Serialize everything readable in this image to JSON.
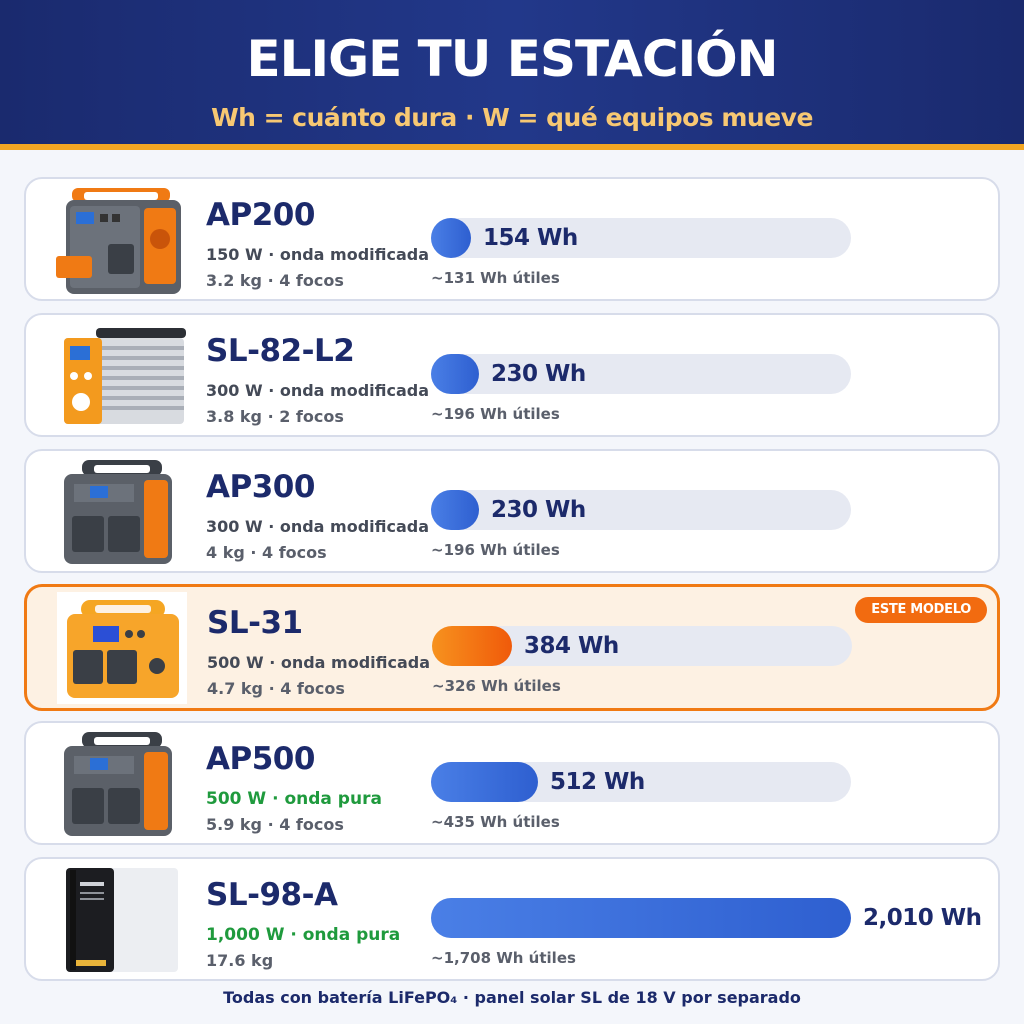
{
  "header": {
    "title": "ELIGE TU ESTACIÓN",
    "subtitle": "Wh = cuánto dura · W = qué equipos mueve"
  },
  "colors": {
    "header_bg": "#1f3380",
    "accent_gold": "#f3a623",
    "bar_blue": "#3b6fdc",
    "bar_orange": "#f37418",
    "highlight_bg": "#fdf1e3",
    "pure_green": "#1f9a3d"
  },
  "stations": [
    {
      "name": "AP200",
      "spec1": "150 W · onda modificada",
      "spec2": "3.2 kg · 4 focos",
      "capacity": "154 Wh",
      "capacity_value": 154,
      "useful": "~131 Wh útiles",
      "image_icon": "orange-gray-power-station-with-battery-icon"
    },
    {
      "name": "SL-82-L2",
      "spec1": "300 W · onda modificada",
      "spec2": "3.8 kg · 2 focos",
      "capacity": "230 Wh",
      "capacity_value": 230,
      "useful": "~196 Wh útiles",
      "image_icon": "silver-finned-power-station-icon"
    },
    {
      "name": "AP300",
      "spec1": "300 W · onda modificada",
      "spec2": "4 kg · 4 focos",
      "capacity": "230 Wh",
      "capacity_value": 230,
      "useful": "~196 Wh útiles",
      "image_icon": "gray-orange-power-station-icon"
    },
    {
      "name": "SL-31",
      "spec1": "500 W · onda modificada",
      "spec2": "4.7 kg · 4 focos",
      "capacity": "384 Wh",
      "capacity_value": 384,
      "useful": "~326 Wh útiles",
      "badge": "ESTE MODELO",
      "image_icon": "yellow-power-station-icon"
    },
    {
      "name": "AP500",
      "spec1": "500 W · onda pura",
      "spec2": "5.9 kg · 4 focos",
      "capacity": "512 Wh",
      "capacity_value": 512,
      "useful": "~435 Wh útiles",
      "image_icon": "gray-orange-power-station-icon"
    },
    {
      "name": "SL-98-A",
      "spec1": "1,000 W · onda pura",
      "spec2": "17.6 kg",
      "capacity": "2,010 Wh",
      "capacity_value": 2010,
      "useful": "~1,708 Wh útiles",
      "image_icon": "white-tower-power-station-icon"
    }
  ],
  "footer": "Todas con batería LiFePO₄ · panel solar SL de 18 V por separado"
}
